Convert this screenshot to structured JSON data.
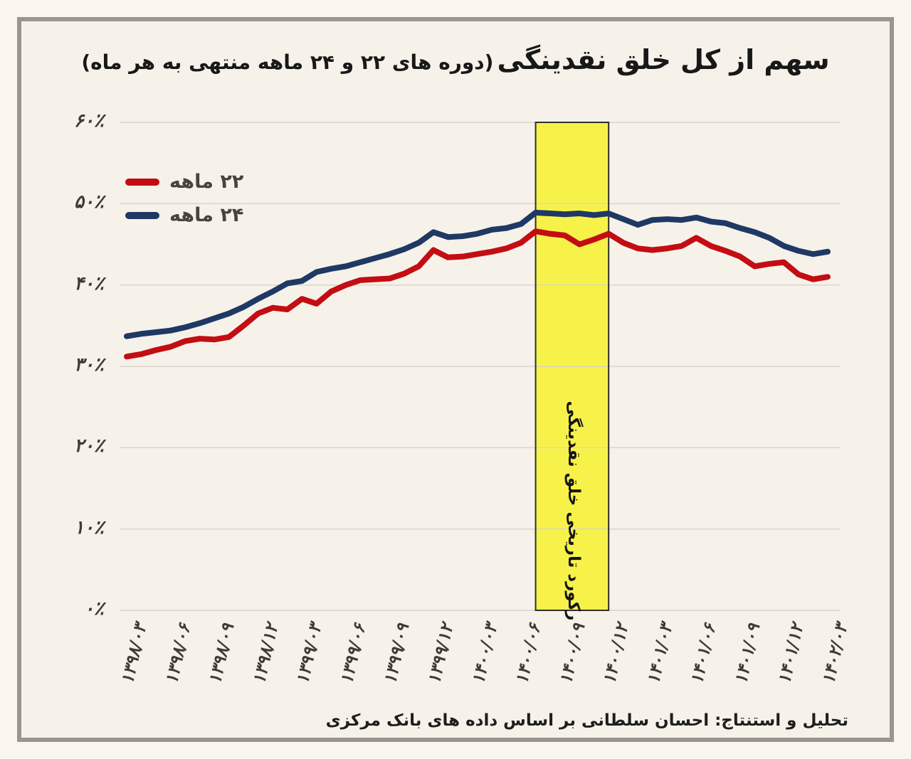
{
  "title": {
    "main": "سهم از کل خلق نقدینگی",
    "paren": "(دوره های ۲۲ و ۲۴ ماهه منتهی به هر ماه)"
  },
  "legend": [
    {
      "label": "۲۲ ماهه",
      "color": "#c30d13"
    },
    {
      "label": "۲۴ ماهه",
      "color": "#1f3864"
    }
  ],
  "y_axis": {
    "tick_labels": [
      "۶۰٪",
      "۵۰٪",
      "۴۰٪",
      "۳۰٪",
      "۲۰٪",
      "۱۰٪",
      "۰٪"
    ],
    "tick_values": [
      60,
      50,
      40,
      30,
      20,
      10,
      0
    ]
  },
  "x_axis": {
    "tick_labels": [
      "۱۳۹۸/۰۳",
      "۱۳۹۸/۰۶",
      "۱۳۹۸/۰۹",
      "۱۳۹۸/۱۲",
      "۱۳۹۹/۰۳",
      "۱۳۹۹/۰۶",
      "۱۳۹۹/۰۹",
      "۱۳۹۹/۱۲",
      "۱۴۰۰/۰۳",
      "۱۴۰۰/۰۶",
      "۱۴۰۰/۰۹",
      "۱۴۰۰/۱۲",
      "۱۴۰۱/۰۳",
      "۱۴۰۱/۰۶",
      "۱۴۰۱/۰۹",
      "۱۴۰۱/۱۲",
      "۱۴۰۲/۰۳"
    ]
  },
  "highlight_band": {
    "label": "رکورد تاریخی خلق نقدینگی",
    "x_start": "۱۴۰۰/۰۷",
    "x_end": "۱۴۰۰/۱۲",
    "fill": "#f7f24a",
    "border": "#2e2e2e"
  },
  "footer": {
    "attribution": "تحلیل و استنتاج: احسان سلطانی بر اساس داده های بانک مرکزی"
  },
  "colors": {
    "grid": "#d8d4cb",
    "background": "#f6f2ea"
  },
  "chart_data": {
    "type": "line",
    "x": [
      "۱۳۹۸/۰۳",
      "۱۳۹۸/۰۴",
      "۱۳۹۸/۰۵",
      "۱۳۹۸/۰۶",
      "۱۳۹۸/۰۷",
      "۱۳۹۸/۰۸",
      "۱۳۹۸/۰۹",
      "۱۳۹۸/۱۰",
      "۱۳۹۸/۱۱",
      "۱۳۹۸/۱۲",
      "۱۳۹۹/۰۱",
      "۱۳۹۹/۰۲",
      "۱۳۹۹/۰۳",
      "۱۳۹۹/۰۴",
      "۱۳۹۹/۰۵",
      "۱۳۹۹/۰۶",
      "۱۳۹۹/۰۷",
      "۱۳۹۹/۰۸",
      "۱۳۹۹/۰۹",
      "۱۳۹۹/۱۰",
      "۱۳۹۹/۱۱",
      "۱۳۹۹/۱۲",
      "۱۴۰۰/۰۱",
      "۱۴۰۰/۰۲",
      "۱۴۰۰/۰۳",
      "۱۴۰۰/۰۴",
      "۱۴۰۰/۰۵",
      "۱۴۰۰/۰۶",
      "۱۴۰۰/۰۷",
      "۱۴۰۰/۰۸",
      "۱۴۰۰/۰۹",
      "۱۴۰۰/۱۰",
      "۱۴۰۰/۱۱",
      "۱۴۰۰/۱۲",
      "۱۴۰۱/۰۱",
      "۱۴۰۱/۰۲",
      "۱۴۰۱/۰۳",
      "۱۴۰۱/۰۴",
      "۱۴۰۱/۰۵",
      "۱۴۰۱/۰۶",
      "۱۴۰۱/۰۷",
      "۱۴۰۱/۰۸",
      "۱۴۰۱/۰۹",
      "۱۴۰۱/۱۰",
      "۱۴۰۱/۱۱",
      "۱۴۰۱/۱۲",
      "۱۴۰۲/۰۱",
      "۱۴۰۲/۰۲",
      "۱۴۰۲/۰۳"
    ],
    "series": [
      {
        "name": "۲۲ ماهه",
        "color": "#c30d13",
        "values": [
          31.2,
          31.5,
          32.0,
          32.4,
          33.1,
          33.4,
          33.3,
          33.6,
          35.0,
          36.5,
          37.2,
          37.0,
          38.3,
          37.7,
          39.2,
          40.0,
          40.6,
          40.7,
          40.8,
          41.4,
          42.3,
          44.3,
          43.4,
          43.5,
          43.8,
          44.1,
          44.5,
          45.2,
          46.6,
          46.3,
          46.1,
          45.0,
          45.6,
          46.3,
          45.2,
          44.5,
          44.3,
          44.5,
          44.8,
          45.8,
          44.8,
          44.2,
          43.5,
          42.3,
          42.6,
          42.8,
          41.3,
          40.7,
          41.0
        ]
      },
      {
        "name": "۲۴ ماهه",
        "color": "#1f3864",
        "values": [
          33.7,
          34.0,
          34.2,
          34.4,
          34.8,
          35.3,
          35.9,
          36.5,
          37.3,
          38.3,
          39.2,
          40.2,
          40.5,
          41.6,
          42.0,
          42.3,
          42.8,
          43.3,
          43.8,
          44.4,
          45.2,
          46.5,
          45.9,
          46.0,
          46.3,
          46.8,
          47.0,
          47.5,
          48.9,
          48.8,
          48.7,
          48.8,
          48.6,
          48.8,
          48.1,
          47.4,
          48.0,
          48.1,
          48.0,
          48.3,
          47.8,
          47.6,
          47.0,
          46.5,
          45.8,
          44.8,
          44.2,
          43.8,
          44.1
        ]
      }
    ],
    "ylim": [
      0,
      60
    ],
    "x_tick_every": 3,
    "grid": "horizontal",
    "legend_position": "top-left-inside",
    "highlight_band": {
      "x_start": "۱۴۰۰/۰۷",
      "x_end": "۱۴۰۰/۱۲"
    }
  }
}
